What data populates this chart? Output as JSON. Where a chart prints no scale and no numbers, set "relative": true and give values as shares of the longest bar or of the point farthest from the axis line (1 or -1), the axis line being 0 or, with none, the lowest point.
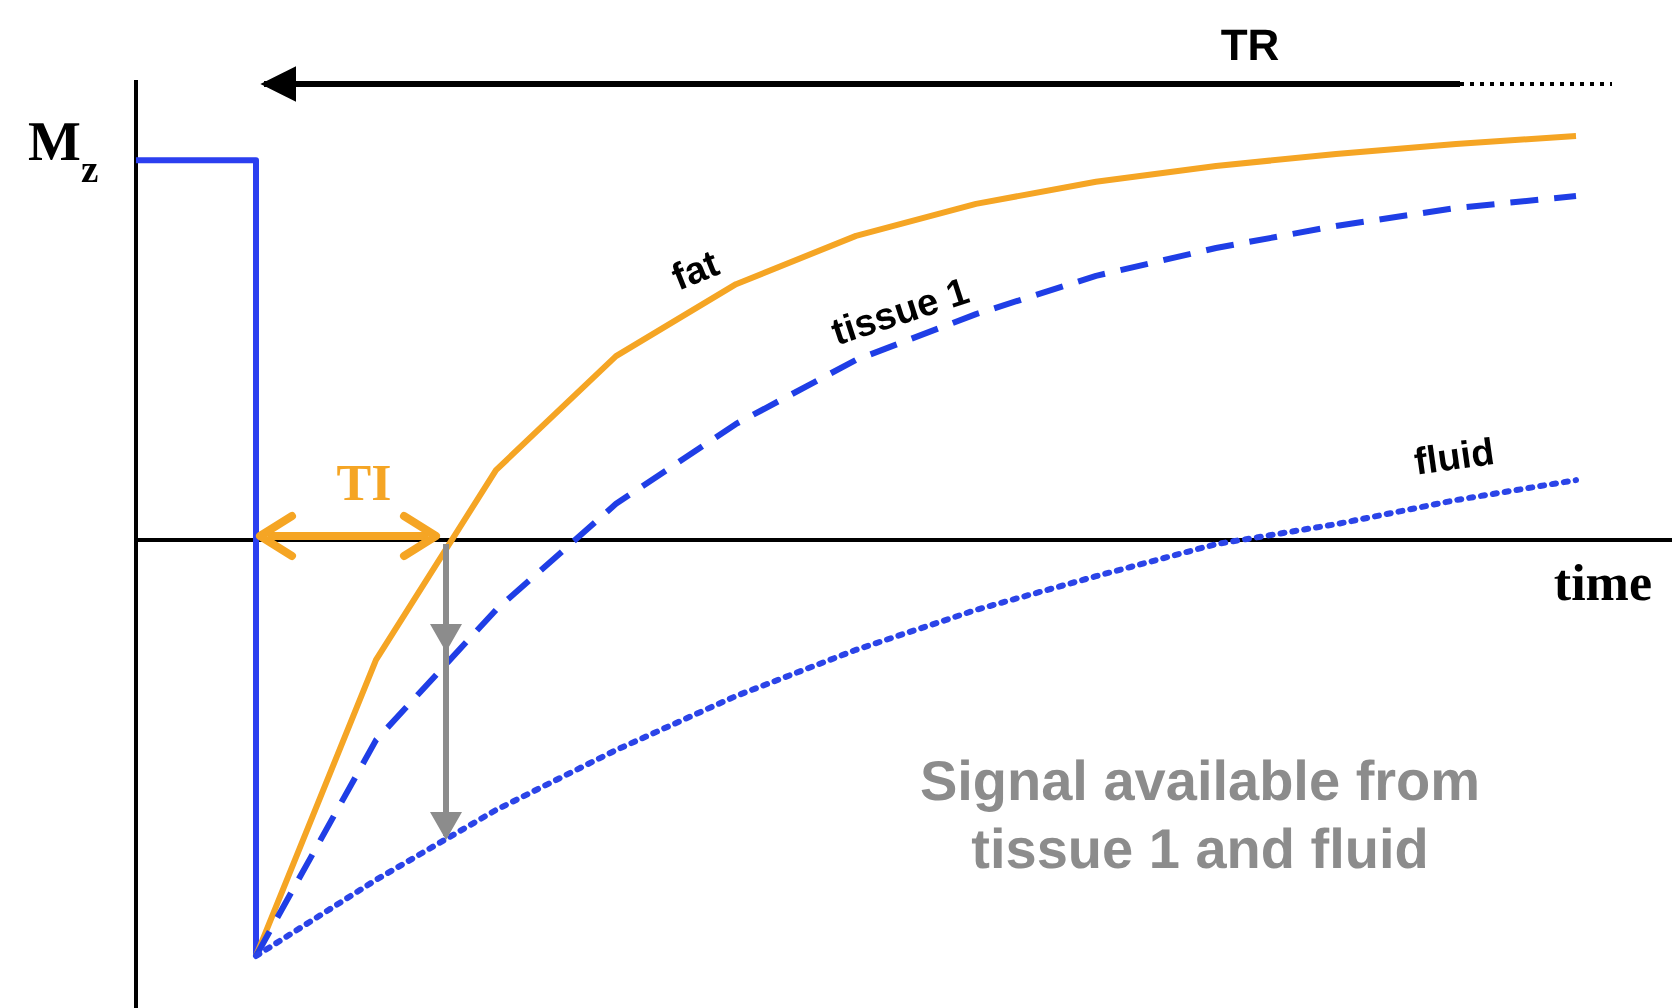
{
  "chart_data": {
    "type": "line",
    "relative": true,
    "ylabel": "M$_{z}$",
    "xlabel": "time",
    "marker": "none",
    "categories": [
      null,
      null,
      null,
      null,
      null,
      null,
      null,
      null,
      null,
      null,
      null,
      null,
      null
    ],
    "annotations": [
      "TR",
      "TI",
      "Signal available from tissue 1 and fluid"
    ],
    "series": [
      {
        "type": "step",
        "color": "#2b3ff0",
        "line_style": "solid",
        "values": [
          0.913,
          -1,
          null,
          null,
          null,
          null,
          null,
          null,
          null,
          null,
          null,
          null,
          null
        ]
      },
      {
        "name": "fat",
        "color": "#f5a524",
        "line_style": "solid",
        "values": [
          null,
          -1,
          -0.288,
          0.168,
          0.442,
          0.615,
          0.731,
          0.808,
          0.861,
          0.899,
          0.928,
          0.952,
          0.971
        ]
      },
      {
        "name": "tissue 1",
        "color": "#1f3ee6",
        "line_style": "dashed",
        "values": [
          null,
          -1,
          -0.481,
          -0.168,
          0.087,
          0.279,
          0.433,
          0.543,
          0.635,
          0.702,
          0.755,
          0.798,
          0.827
        ]
      },
      {
        "name": "fluid",
        "color": "#2b44e8",
        "line_style": "dotted",
        "values": [
          null,
          -1,
          -0.817,
          -0.649,
          -0.505,
          -0.375,
          -0.264,
          -0.168,
          -0.087,
          -0.01,
          0.038,
          0.096,
          0.144
        ]
      }
    ]
  }
}
